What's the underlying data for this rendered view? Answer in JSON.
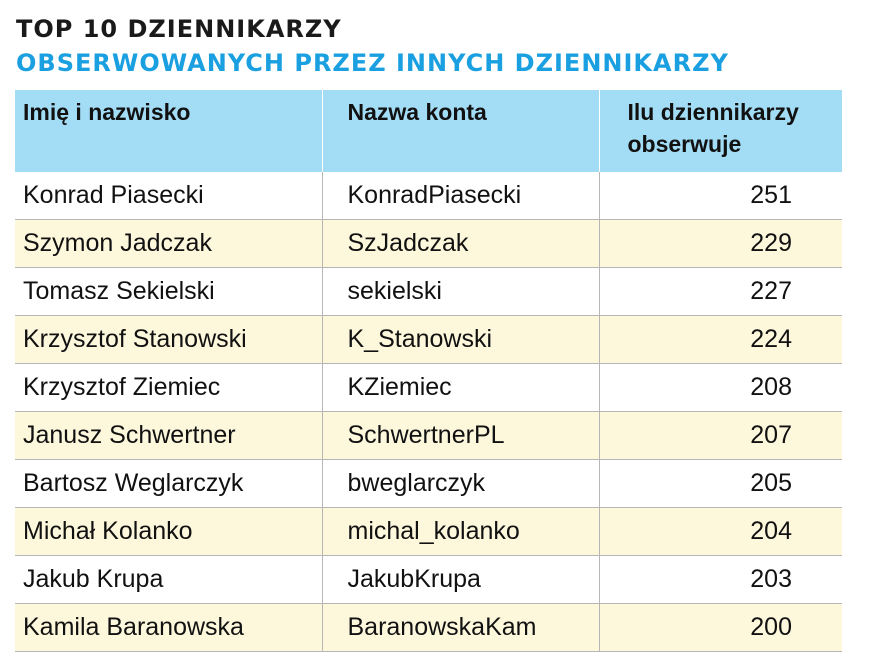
{
  "header": {
    "title_line1": "TOP 10 DZIENNIKARZY",
    "title_line2": "OBSERWOWANYCH PRZEZ INNYCH DZIENNIKARZY"
  },
  "colors": {
    "title_primary": "#1a1a1a",
    "title_accent": "#1aa0e0",
    "header_background": "#a3dcf5",
    "striped_row_background": "#fdf7dc"
  },
  "table": {
    "columns": [
      {
        "label": "Imię i nazwisko"
      },
      {
        "label": "Nazwa konta"
      },
      {
        "label": "Ilu dziennikarzy\nobserwuje"
      }
    ],
    "rows": [
      {
        "name": "Konrad Piasecki",
        "account": "KonradPiasecki",
        "count": "251"
      },
      {
        "name": "Szymon Jadczak",
        "account": "SzJadczak",
        "count": "229"
      },
      {
        "name": "Tomasz Sekielski",
        "account": "sekielski",
        "count": "227"
      },
      {
        "name": "Krzysztof Stanowski",
        "account": "K_Stanowski",
        "count": "224"
      },
      {
        "name": "Krzysztof Ziemiec",
        "account": "KZiemiec",
        "count": "208"
      },
      {
        "name": "Janusz Schwertner",
        "account": "SchwertnerPL",
        "count": "207"
      },
      {
        "name": "Bartosz Weglarczyk",
        "account": "bweglarczyk",
        "count": "205"
      },
      {
        "name": "Michał Kolanko",
        "account": "michal_kolanko",
        "count": "204"
      },
      {
        "name": "Jakub Krupa",
        "account": "JakubKrupa",
        "count": "203"
      },
      {
        "name": "Kamila Baranowska",
        "account": "BaranowskaKam",
        "count": "200"
      }
    ]
  }
}
